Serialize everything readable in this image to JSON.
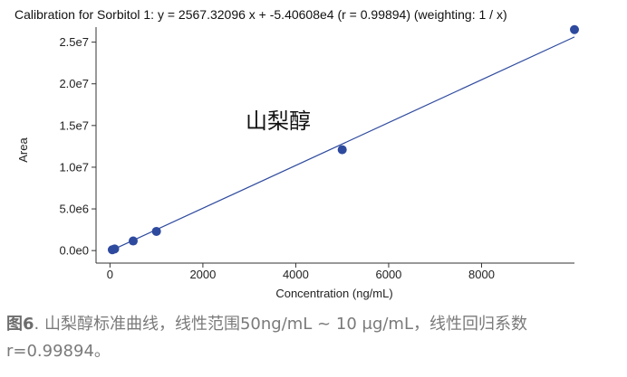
{
  "chart_data": {
    "type": "scatter",
    "title": "Calibration for Sorbitol 1: y = 2567.32096 x + -5.40608e4 (r = 0.99894)  (weighting: 1 / x)",
    "xlabel": "Concentration (ng/mL)",
    "ylabel": "Area",
    "annotation": "山梨醇",
    "xlim": [
      -300,
      10000
    ],
    "ylim": [
      -1500000,
      26800000
    ],
    "x_ticks": [
      0,
      2000,
      4000,
      6000,
      8000
    ],
    "x_tick_labels": [
      "0",
      "2000",
      "4000",
      "6000",
      "8000"
    ],
    "y_ticks": [
      0,
      5000000,
      10000000,
      15000000,
      20000000,
      25000000
    ],
    "y_tick_labels": [
      "0.0e0",
      "5.0e6",
      "1.0e7",
      "1.5e7",
      "2.0e7",
      "2.5e7"
    ],
    "grid": false,
    "points": [
      {
        "x": 50,
        "y": 100000
      },
      {
        "x": 100,
        "y": 200000
      },
      {
        "x": 500,
        "y": 1150000
      },
      {
        "x": 1000,
        "y": 2300000
      },
      {
        "x": 5000,
        "y": 12100000
      },
      {
        "x": 10000,
        "y": 26500000
      }
    ],
    "fit_line": {
      "slope": 2567.32096,
      "intercept": -54060.8,
      "x_range": [
        0,
        10000
      ]
    },
    "colors": {
      "points": "#2e4a9e",
      "line": "#2e4a9e",
      "axis": "#333333"
    }
  },
  "caption": {
    "figure_label": "图6",
    "text": ". 山梨醇标准曲线，线性范围50ng/mL ~ 10 μg/mL，线性回归系数r=0.99894。"
  }
}
